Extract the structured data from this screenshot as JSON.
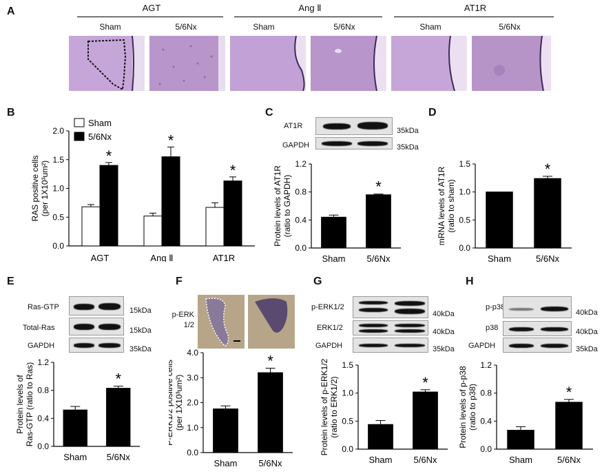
{
  "panelA": {
    "label": "A",
    "groups": [
      {
        "name": "AGT",
        "sham": "Sham",
        "nx": "5/6Nx"
      },
      {
        "name": "Ang Ⅱ",
        "sham": "Sham",
        "nx": "5/6Nx"
      },
      {
        "name": "AT1R",
        "sham": "Sham",
        "nx": "5/6Nx"
      }
    ]
  },
  "panelC": {
    "label": "C",
    "bands": [
      "AT1R",
      "GAPDH"
    ],
    "kda": [
      "35kDa",
      "35kDa"
    ]
  },
  "panelE": {
    "label": "E",
    "bands": [
      "Ras-GTP",
      "Total-Ras",
      "GAPDH"
    ],
    "kda": [
      "15kDa",
      "15kDa",
      "35kDa"
    ]
  },
  "panelF": {
    "label": "F",
    "stain": "p-ERK 1/2"
  },
  "panelG": {
    "label": "G",
    "bands": [
      "p-ERK1/2",
      "ERK1/2",
      "GAPDH"
    ],
    "kda": [
      "40kDa",
      "40kDa",
      "35kDa"
    ]
  },
  "panelH": {
    "label": "H",
    "bands": [
      "p-p38",
      "p38",
      "GAPDH"
    ],
    "kda": [
      "40kDa",
      "40kDa",
      "35kDa"
    ]
  },
  "chart_data": [
    {
      "panel": "B",
      "type": "bar",
      "categories": [
        "AGT",
        "Ang Ⅱ",
        "AT1R"
      ],
      "series": [
        {
          "name": "Sham",
          "color": "#ffffff",
          "values": [
            0.68,
            0.52,
            0.67
          ],
          "errors": [
            0.04,
            0.05,
            0.08
          ]
        },
        {
          "name": "5/6Nx",
          "color": "#000000",
          "values": [
            1.4,
            1.55,
            1.13
          ],
          "errors": [
            0.05,
            0.17,
            0.07
          ]
        }
      ],
      "ylabel": "RAS positive cells",
      "ylabel2": "(per 1X10³um²)",
      "ylim": [
        0,
        2.0
      ],
      "yticks": [
        "0.0",
        "0.5",
        "1.0",
        "1.5",
        "2.0"
      ],
      "significance": [
        "*",
        "*",
        "*"
      ],
      "legend": "top-left"
    },
    {
      "panel": "C",
      "type": "bar",
      "categories": [
        "Sham",
        "5/6Nx"
      ],
      "values": [
        0.44,
        0.76
      ],
      "errors": [
        0.03,
        0.01
      ],
      "ylabel": "Protein levels  of AT1R",
      "ylabel2": "(ratio to GAPDH)",
      "ylim": [
        0,
        1.2
      ],
      "yticks": [
        "0.0",
        "0.4",
        "0.8",
        "1.2"
      ],
      "significance": "*"
    },
    {
      "panel": "D",
      "type": "bar",
      "categories": [
        "Sham",
        "5/6Nx"
      ],
      "values": [
        1.0,
        1.24
      ],
      "errors": [
        0.0,
        0.04
      ],
      "ylabel": "mRNA levels of AT1R",
      "ylabel2": "(ratio to sham)",
      "ylim": [
        0,
        1.5
      ],
      "yticks": [
        "0.0",
        "0.5",
        "1.0",
        "1.5"
      ],
      "significance": "*"
    },
    {
      "panel": "E",
      "type": "bar",
      "categories": [
        "Sham",
        "5/6Nx"
      ],
      "values": [
        0.52,
        0.83
      ],
      "errors": [
        0.05,
        0.03
      ],
      "ylabel": "Protein levels of",
      "ylabel2": "Ras-GTP (ratio to Ras)",
      "ylim": [
        0,
        1.2
      ],
      "yticks": [
        "0.0",
        "0.4",
        "0.8",
        "1.2"
      ],
      "significance": "*"
    },
    {
      "panel": "F",
      "type": "bar",
      "categories": [
        "Sham",
        "5/6Nx"
      ],
      "values": [
        1.75,
        3.2
      ],
      "errors": [
        0.12,
        0.18
      ],
      "ylabel": "P-ERK1/2 positive cells",
      "ylabel2": "(per 1X10³um²)",
      "ylim": [
        0,
        4.0
      ],
      "yticks": [
        "0.0",
        "1.0",
        "2.0",
        "3.0",
        "4.0"
      ],
      "significance": "*"
    },
    {
      "panel": "G",
      "type": "bar",
      "categories": [
        "Sham",
        "5/6Nx"
      ],
      "values": [
        0.44,
        1.02
      ],
      "errors": [
        0.07,
        0.04
      ],
      "ylabel": "Protein levels of p-ERK1/2",
      "ylabel2": "(ratio to ERK1/2)",
      "ylim": [
        0,
        1.5
      ],
      "yticks": [
        "0.0",
        "0.5",
        "1.0",
        "1.5"
      ],
      "significance": "*"
    },
    {
      "panel": "H",
      "type": "bar",
      "categories": [
        "Sham",
        "5/6Nx"
      ],
      "values": [
        0.27,
        0.67
      ],
      "errors": [
        0.05,
        0.04
      ],
      "ylabel": "Protein levels  of p-p38",
      "ylabel2": "(ratio to p38)",
      "ylim": [
        0,
        1.2
      ],
      "yticks": [
        "0.0",
        "0.4",
        "0.8",
        "1.2"
      ],
      "significance": "*"
    }
  ]
}
